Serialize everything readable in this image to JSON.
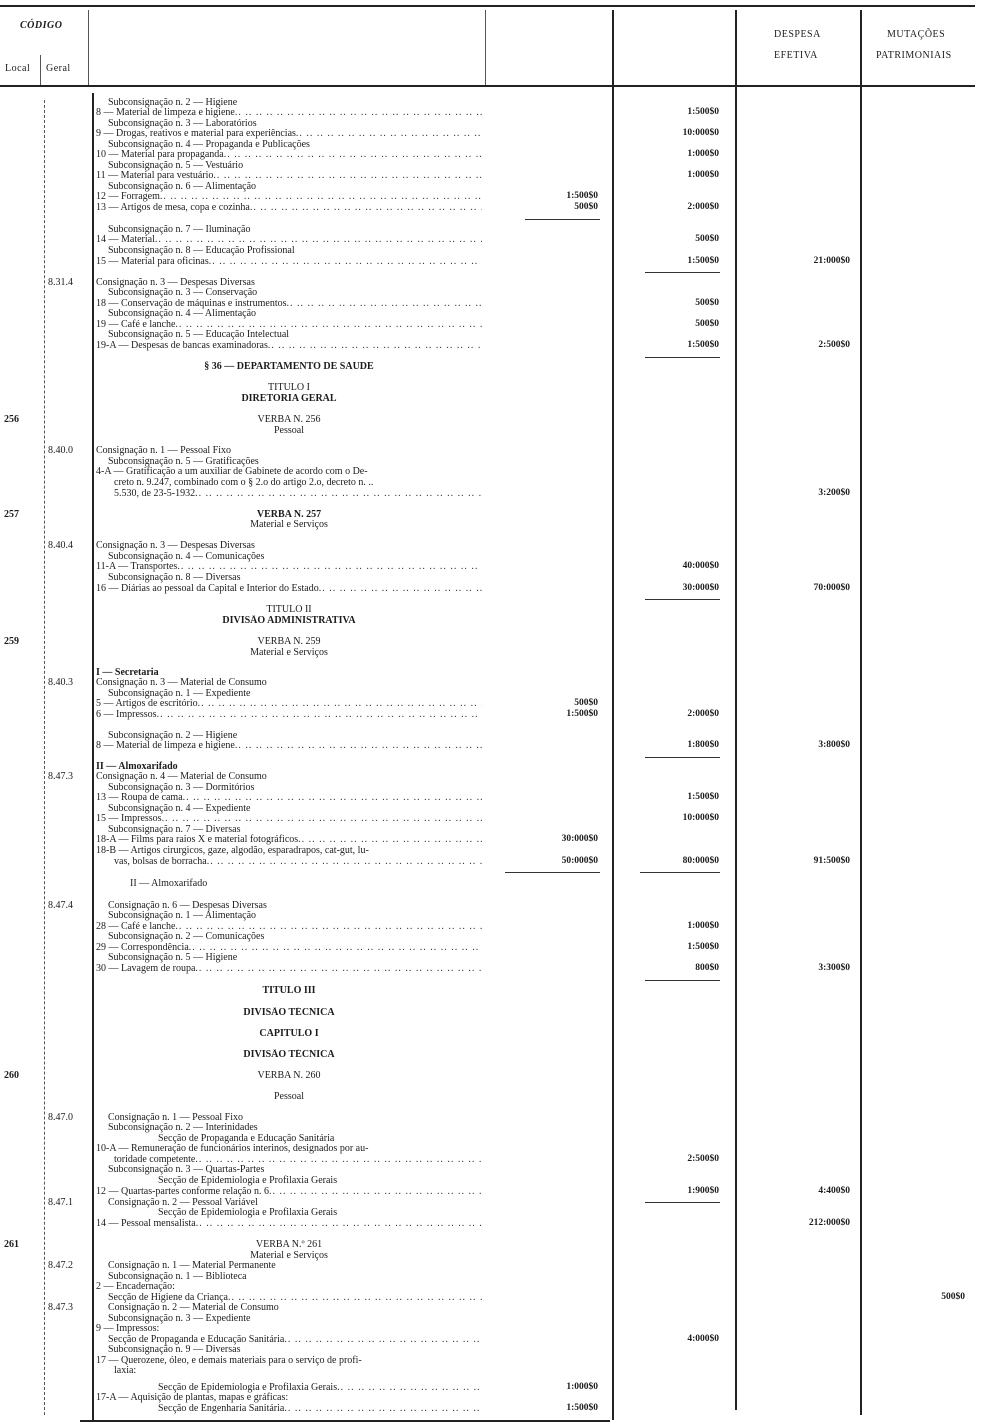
{
  "header": {
    "codigo": "CÓDIGO",
    "local": "Local",
    "geral": "Geral",
    "despesa_1": "DESPESA",
    "despesa_2": "EFETIVA",
    "mutacoes_1": "MUTAÇÕES",
    "mutacoes_2": "PATRIMONIAIS"
  },
  "rows": [
    {
      "kind": "sub",
      "text": "Subconsignação n. 2 — Higiene"
    },
    {
      "kind": "item",
      "text": "8 — Material de limpeza e higiene",
      "leader": true,
      "c2": "1:500$0"
    },
    {
      "kind": "sub",
      "text": "Subconsignação n. 3 — Laboratórios"
    },
    {
      "kind": "item",
      "text": "9 — Drogas, reativos e material para experiências",
      "leader": true,
      "c2": "10:000$0"
    },
    {
      "kind": "sub",
      "text": "Subconsignação n. 4 — Propaganda e Publicações"
    },
    {
      "kind": "item",
      "text": "10 — Material para propaganda",
      "leader": true,
      "c2": "1:000$0"
    },
    {
      "kind": "sub",
      "text": "Subconsignação n. 5 — Vestuário"
    },
    {
      "kind": "item",
      "text": "11 — Material para vestuário",
      "leader": true,
      "c2": "1:000$0"
    },
    {
      "kind": "sub",
      "text": "Subconsignação n. 6 — Alimentação"
    },
    {
      "kind": "item",
      "text": "12 — Forragem",
      "leader": true,
      "c1": "1:500$0"
    },
    {
      "kind": "item",
      "text": "13 — Artigos de mesa, copa e cozinha",
      "leader": true,
      "c1": "500$0",
      "c2": "2:000$0"
    },
    {
      "kind": "sub",
      "text": "Subconsignação n. 7 — Iluminação"
    },
    {
      "kind": "item",
      "text": "14 — Material",
      "leader": true,
      "c2": "500$0"
    },
    {
      "kind": "sub",
      "text": "Subconsignação n. 8 — Educação Profissional"
    },
    {
      "kind": "item",
      "text": "15 — Material para oficinas",
      "leader": true,
      "c2": "1:500$0",
      "c3": "21:000$0"
    },
    {
      "kind": "item",
      "geral": "8.31.4",
      "text": "Consignação n. 3 — Despesas Diversas"
    },
    {
      "kind": "sub",
      "text": "Subconsignação n. 3 — Conservação"
    },
    {
      "kind": "item",
      "text": "18 — Conservação de máquinas e instrumentos",
      "leader": true,
      "c2": "500$0"
    },
    {
      "kind": "sub",
      "text": "Subconsignação n. 4 — Alimentação"
    },
    {
      "kind": "item",
      "text": "19 — Café e lanche",
      "leader": true,
      "c2": "500$0"
    },
    {
      "kind": "sub",
      "text": "Subconsignação n. 5 — Educação Intelectual"
    },
    {
      "kind": "item",
      "text": "19-A — Despesas de bancas examinadoras",
      "leader": true,
      "c2": "1:500$0",
      "c3": "2:500$0"
    },
    {
      "kind": "heading",
      "bold": true,
      "text": "§ 36 — DEPARTAMENTO DE SAUDE"
    },
    {
      "kind": "heading",
      "text": "TITULO I"
    },
    {
      "kind": "heading",
      "bold": true,
      "text": "DIRETORIA GERAL"
    },
    {
      "kind": "heading",
      "local": "256",
      "text": "VERBA N. 256"
    },
    {
      "kind": "heading",
      "text": "Pessoal"
    },
    {
      "kind": "item",
      "geral": "8.40.0",
      "text": "Consignação n. 1 — Pessoal Fixo"
    },
    {
      "kind": "sub",
      "text": "Subconsignação n. 5 — Gratificações"
    },
    {
      "kind": "item",
      "text": "4-A — Gratificação a um auxiliar de Gabinete de acordo com o De-"
    },
    {
      "kind": "cont",
      "text": "creto n. 9.247, combinado com o § 2.o do artigo 2.o, decreto n. .."
    },
    {
      "kind": "cont",
      "text": "5.530, de 23-5-1932",
      "leader": true,
      "c3": "3:200$0"
    },
    {
      "kind": "heading",
      "bold": true,
      "local": "257",
      "text": "VERBA N. 257"
    },
    {
      "kind": "heading",
      "text": "Material e Serviços"
    },
    {
      "kind": "item",
      "geral": "8.40.4",
      "text": "Consignação n. 3 — Despesas Diversas"
    },
    {
      "kind": "sub",
      "text": "Subconsignação n. 4 — Comunicações"
    },
    {
      "kind": "item",
      "text": "11-A — Transportes",
      "leader": true,
      "c2": "40:000$0"
    },
    {
      "kind": "sub",
      "text": "Subconsignação n. 8 — Diversas"
    },
    {
      "kind": "item",
      "text": "16 — Diárias ao pessoal da Capital e Interior do Estado",
      "leader": true,
      "c2": "30:000$0",
      "c3": "70:000$0"
    },
    {
      "kind": "heading",
      "text": "TITULO II"
    },
    {
      "kind": "heading",
      "bold": true,
      "text": "DIVISÃO ADMINISTRATIVA"
    },
    {
      "kind": "heading",
      "local": "259",
      "text": "VERBA N. 259"
    },
    {
      "kind": "heading",
      "text": "Material e Serviços"
    },
    {
      "kind": "item",
      "bold": true,
      "text": "I — Secretaria"
    },
    {
      "kind": "item",
      "geral": "8.40.3",
      "text": "Consignação n. 3 — Material de Consumo"
    },
    {
      "kind": "sub",
      "text": "Subconsignação n. 1 — Expediente"
    },
    {
      "kind": "item",
      "text": "5 — Artigos de escritório",
      "leader": true,
      "c1": "500$0"
    },
    {
      "kind": "item",
      "text": "6 — Impressos",
      "leader": true,
      "c1": "1:500$0",
      "c2": "2:000$0"
    },
    {
      "kind": "sub",
      "text": "Subconsignação n. 2 — Higiene"
    },
    {
      "kind": "item",
      "text": "8 — Material de limpeza e higiene",
      "leader": true,
      "c2": "1:800$0",
      "c3": "3:800$0"
    },
    {
      "kind": "item",
      "bold": true,
      "text": "II — Almoxarifado"
    },
    {
      "kind": "item",
      "geral": "8.47.3",
      "text": "Consignação n. 4 — Material de Consumo"
    },
    {
      "kind": "sub",
      "text": "Subconsignação n. 3 — Dormitórios"
    },
    {
      "kind": "item",
      "text": "13 — Roupa de cama",
      "leader": true,
      "c2": "1:500$0"
    },
    {
      "kind": "sub",
      "text": "Subconsignação n. 4 — Expediente"
    },
    {
      "kind": "item",
      "text": "15 — Impressos",
      "leader": true,
      "c2": "10:000$0"
    },
    {
      "kind": "sub",
      "text": "Subconsignação n. 7 — Diversas"
    },
    {
      "kind": "item",
      "text": "18-A — Films para raios X e material fotográficos",
      "leader": true,
      "c1": "30:000$0"
    },
    {
      "kind": "item",
      "text": "18-B — Artigos cirurgicos, gaze, algodão, esparadrapos, cat-gut, lu-"
    },
    {
      "kind": "cont",
      "text": "vas, bolsas de borracha",
      "leader": true,
      "c1": "50:000$0",
      "c2": "80:000$0",
      "c3": "91:500$0"
    },
    {
      "kind": "center2",
      "text": "II — Almoxarifado"
    },
    {
      "kind": "sub",
      "geral": "8.47.4",
      "text": "Consignação n. 6 — Despesas Diversas"
    },
    {
      "kind": "sub",
      "text": "Subconsignação n. 1 — Alimentação"
    },
    {
      "kind": "item",
      "text": "28 — Café e lanche",
      "leader": true,
      "c2": "1:000$0"
    },
    {
      "kind": "sub",
      "text": "Subconsignação n. 2 — Comunicações"
    },
    {
      "kind": "item",
      "text": "29 — Correspondência",
      "leader": true,
      "c2": "1:500$0"
    },
    {
      "kind": "sub",
      "text": "Subconsignação n. 5 — Higiene"
    },
    {
      "kind": "item",
      "text": "30 — Lavagem de roupa",
      "leader": true,
      "c2": "800$0",
      "c3": "3:300$0"
    },
    {
      "kind": "heading",
      "bold": true,
      "text": "TITULO III"
    },
    {
      "kind": "heading",
      "bold": true,
      "text": "DIVISÃO TÉCNICA"
    },
    {
      "kind": "heading",
      "bold": true,
      "text": "CAPITULO I"
    },
    {
      "kind": "heading",
      "bold": true,
      "text": "DIVISÃO TÉCNICA"
    },
    {
      "kind": "heading",
      "local": "260",
      "text": "VERBA N. 260"
    },
    {
      "kind": "heading",
      "text": "Pessoal"
    },
    {
      "kind": "sub",
      "geral": "8.47.0",
      "text": "Consignação n. 1 — Pessoal Fixo"
    },
    {
      "kind": "sub",
      "text": "Subconsignação n. 2 — Interinidades"
    },
    {
      "kind": "secao",
      "text": "Secção de Propaganda e Educação Sanitária"
    },
    {
      "kind": "item",
      "text": "10-A — Remuneração de funcionários interinos, designados por au-"
    },
    {
      "kind": "cont",
      "text": "toridade competente",
      "leader": true,
      "c2": "2:500$0"
    },
    {
      "kind": "sub",
      "text": "Subconsignação n. 3 — Quartas-Partes"
    },
    {
      "kind": "secao",
      "text": "Secção de Epidemiologia e Profilaxia Gerais"
    },
    {
      "kind": "item",
      "text": "12 — Quartas-partes conforme relação n. 6",
      "leader": true,
      "c2": "1:900$0",
      "c3": "4:400$0"
    },
    {
      "kind": "sub",
      "geral": "8.47.1",
      "text": "Consignação n. 2 — Pessoal Variável"
    },
    {
      "kind": "secao",
      "text": "Secção de Epidemiologia e Profilaxia Gerais"
    },
    {
      "kind": "item",
      "text": "14 — Pessoal mensalista",
      "leader": true,
      "c3": "212:000$0"
    },
    {
      "kind": "heading",
      "local": "261",
      "text": "VERBA N.º 261"
    },
    {
      "kind": "heading",
      "text": "Material e Serviços"
    },
    {
      "kind": "sub",
      "geral": "8.47.2",
      "text": "Consignação n. 1 — Material Permanente"
    },
    {
      "kind": "sub",
      "text": "Subconsignação n. 1 — Biblioteca"
    },
    {
      "kind": "item",
      "text": "2 — Encadernação:"
    },
    {
      "kind": "sub",
      "text": "Secção de Higiene da Criança",
      "leader": true,
      "c4": "500$0"
    },
    {
      "kind": "sub",
      "geral": "8.47.3",
      "text": "Consignação n. 2 — Material de Consumo"
    },
    {
      "kind": "sub",
      "text": "Subconsignação n. 3 — Expediente"
    },
    {
      "kind": "item",
      "text": "9 — Impressos:"
    },
    {
      "kind": "sub",
      "text": "Secção de Propaganda e Educação Sanitária",
      "leader": true,
      "c2": "4:000$0"
    },
    {
      "kind": "sub",
      "text": "Subconsignação n. 9 — Diversas"
    },
    {
      "kind": "item",
      "text": "17 — Querozene, óleo, e demais materiais para o serviço de profi-"
    },
    {
      "kind": "cont",
      "text": "laxia:"
    },
    {
      "kind": "secao",
      "text": "Secção de Epidemiologia e Profilaxia Gerais",
      "leader": true,
      "c1": "1:000$0"
    },
    {
      "kind": "item",
      "text": "17-A — Aquisição de plantas, mapas e gráficas:"
    },
    {
      "kind": "secao",
      "text": "Secção de Engenharia Sanitária",
      "leader": true,
      "c1": "1:500$0"
    }
  ]
}
